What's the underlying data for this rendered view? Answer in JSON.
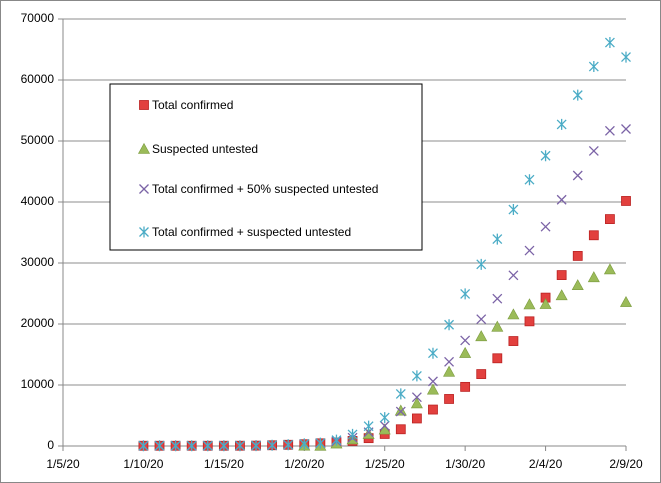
{
  "chart_data": {
    "type": "scatter",
    "x": [
      "1/10/20",
      "1/11/20",
      "1/12/20",
      "1/13/20",
      "1/14/20",
      "1/15/20",
      "1/16/20",
      "1/17/20",
      "1/18/20",
      "1/19/20",
      "1/20/20",
      "1/21/20",
      "1/22/20",
      "1/23/20",
      "1/24/20",
      "1/25/20",
      "1/26/20",
      "1/27/20",
      "1/28/20",
      "1/29/20",
      "1/30/20",
      "1/31/20",
      "2/1/20",
      "2/2/20",
      "2/3/20",
      "2/4/20",
      "2/5/20",
      "2/6/20",
      "2/7/20",
      "2/8/20",
      "2/9/20"
    ],
    "series": [
      {
        "name": "Total confirmed",
        "color": "#e2403e",
        "marker": "square",
        "values": [
          41,
          41,
          41,
          41,
          41,
          41,
          45,
          62,
          121,
          198,
          291,
          440,
          571,
          830,
          1287,
          1975,
          2744,
          4515,
          5974,
          7711,
          9692,
          11791,
          14380,
          17205,
          20438,
          24324,
          28018,
          31161,
          34546,
          37198,
          40171
        ]
      },
      {
        "name": "Suspected untested",
        "color": "#9bbb59",
        "marker": "triangle",
        "values": [
          null,
          null,
          null,
          null,
          null,
          null,
          null,
          null,
          null,
          null,
          54,
          37,
          393,
          1072,
          1965,
          2684,
          5794,
          6973,
          9239,
          12167,
          15238,
          17988,
          19544,
          21558,
          23214,
          23260,
          24702,
          26359,
          27657,
          28942,
          23589
        ]
      },
      {
        "name": "Total confirmed + 50% suspected untested",
        "color": "#7b63a6",
        "marker": "x",
        "values": [
          41,
          41,
          41,
          41,
          41,
          41,
          45,
          62,
          121,
          198,
          318,
          459,
          768,
          1366,
          2270,
          3317,
          5641,
          8002,
          10594,
          13795,
          17311,
          20785,
          24152,
          27984,
          32045,
          35954,
          40369,
          44341,
          48375,
          51669,
          51966
        ]
      },
      {
        "name": "Total confirmed + suspected untested",
        "color": "#4bacc6",
        "marker": "star",
        "values": [
          41,
          41,
          41,
          41,
          41,
          41,
          45,
          62,
          121,
          198,
          345,
          477,
          964,
          1902,
          3252,
          4659,
          8538,
          11488,
          15213,
          19878,
          24930,
          29779,
          33924,
          38763,
          43652,
          47584,
          52720,
          57520,
          62203,
          66140,
          63760
        ]
      }
    ],
    "xlim": [
      "1/5/20",
      "2/9/20"
    ],
    "xticks": [
      "1/5/20",
      "1/10/20",
      "1/15/20",
      "1/20/20",
      "1/25/20",
      "1/30/20",
      "2/4/20",
      "2/9/20"
    ],
    "ylim": [
      0,
      70000
    ],
    "yticks": [
      0,
      10000,
      20000,
      30000,
      40000,
      50000,
      60000,
      70000
    ],
    "grid": true,
    "legend": "upper left"
  }
}
